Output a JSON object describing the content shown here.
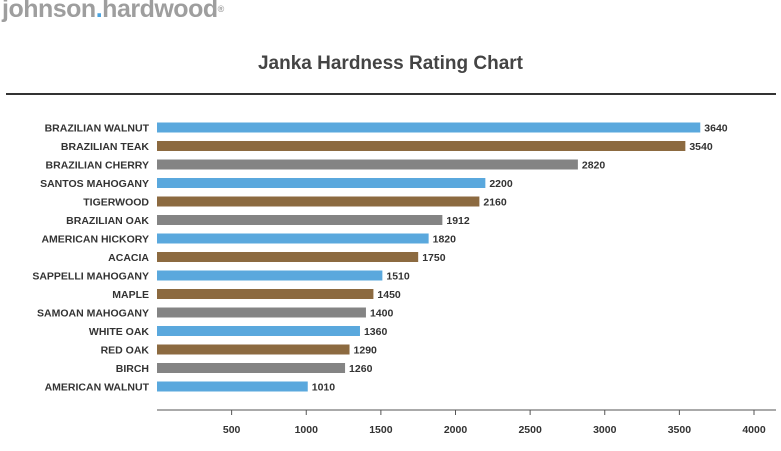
{
  "brand": {
    "part1": "johnson",
    "dot": ".",
    "part2": "hardwood",
    "mark": "®"
  },
  "colors": {
    "blue": "#5aa8dd",
    "brown": "#8c6a40",
    "gray": "#848484",
    "text": "#333333"
  },
  "chart_data": {
    "type": "bar",
    "orientation": "horizontal",
    "title": "Janka Hardness Rating Chart",
    "xlabel": "",
    "ylabel": "",
    "xlim": [
      0,
      4000
    ],
    "xticks": [
      500,
      1000,
      1500,
      2000,
      2500,
      3000,
      3500,
      4000
    ],
    "grid": false,
    "categories": [
      "BRAZILIAN WALNUT",
      "BRAZILIAN TEAK",
      "BRAZILIAN CHERRY",
      "SANTOS MAHOGANY",
      "TIGERWOOD",
      "BRAZILIAN OAK",
      "AMERICAN HICKORY",
      "ACACIA",
      "SAPPELLI MAHOGANY",
      "MAPLE",
      "SAMOAN MAHOGANY",
      "WHITE OAK",
      "RED OAK",
      "BIRCH",
      "AMERICAN WALNUT"
    ],
    "values": [
      3640,
      3540,
      2820,
      2200,
      2160,
      1912,
      1820,
      1750,
      1510,
      1450,
      1400,
      1360,
      1290,
      1260,
      1010
    ],
    "bar_colors": [
      "#5aa8dd",
      "#8c6a40",
      "#848484",
      "#5aa8dd",
      "#8c6a40",
      "#848484",
      "#5aa8dd",
      "#8c6a40",
      "#5aa8dd",
      "#8c6a40",
      "#848484",
      "#5aa8dd",
      "#8c6a40",
      "#848484",
      "#5aa8dd"
    ]
  }
}
